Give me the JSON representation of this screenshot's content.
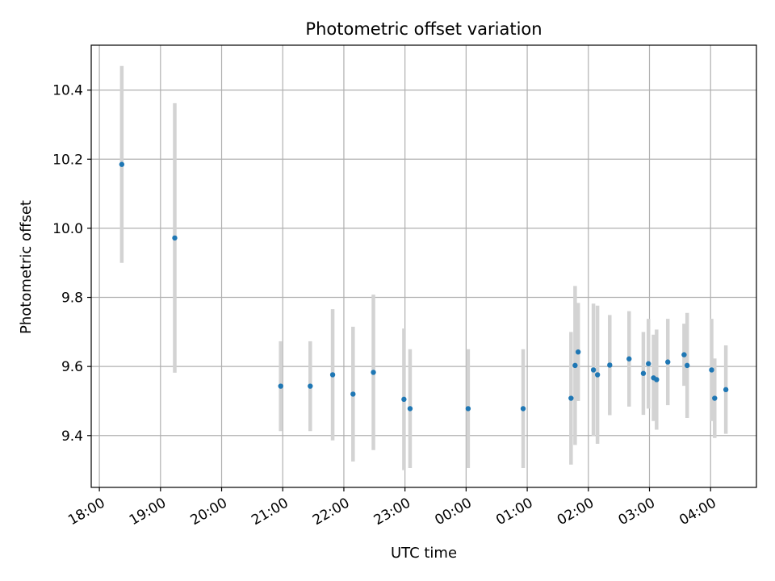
{
  "chart_data": {
    "type": "scatter",
    "title": "Photometric offset variation",
    "xlabel": "UTC time",
    "ylabel": "Photometric offset",
    "x_axis_type": "time",
    "x_axis_start": "18:00",
    "xlim": [
      "17:52",
      "04:45"
    ],
    "ylim": [
      9.25,
      10.53
    ],
    "x_ticks": [
      "18:00",
      "19:00",
      "20:00",
      "21:00",
      "22:00",
      "23:00",
      "00:00",
      "01:00",
      "02:00",
      "03:00",
      "04:00"
    ],
    "y_ticks": [
      9.4,
      9.6,
      9.8,
      10.0,
      10.2,
      10.4
    ],
    "y_tick_labels": [
      "9.4",
      "9.6",
      "9.8",
      "10.0",
      "10.2",
      "10.4"
    ],
    "grid": true,
    "marker_color": "#1f77b4",
    "errorbar_color": "#d3d3d3",
    "points": [
      {
        "t": "18:22",
        "y": 10.185,
        "err": 0.285
      },
      {
        "t": "19:14",
        "y": 9.972,
        "err": 0.39
      },
      {
        "t": "20:58",
        "y": 9.543,
        "err": 0.13
      },
      {
        "t": "21:27",
        "y": 9.543,
        "err": 0.13
      },
      {
        "t": "21:49",
        "y": 9.576,
        "err": 0.19
      },
      {
        "t": "22:09",
        "y": 9.52,
        "err": 0.195
      },
      {
        "t": "22:29",
        "y": 9.583,
        "err": 0.225
      },
      {
        "t": "22:59",
        "y": 9.505,
        "err": 0.205
      },
      {
        "t": "23:05",
        "y": 9.478,
        "err": 0.172
      },
      {
        "t": "00:02",
        "y": 9.478,
        "err": 0.172
      },
      {
        "t": "00:56",
        "y": 9.478,
        "err": 0.172
      },
      {
        "t": "01:43",
        "y": 9.508,
        "err": 0.192
      },
      {
        "t": "01:47",
        "y": 9.603,
        "err": 0.23
      },
      {
        "t": "01:50",
        "y": 9.642,
        "err": 0.142
      },
      {
        "t": "02:05",
        "y": 9.59,
        "err": 0.192
      },
      {
        "t": "02:09",
        "y": 9.576,
        "err": 0.2
      },
      {
        "t": "02:21",
        "y": 9.604,
        "err": 0.145
      },
      {
        "t": "02:40",
        "y": 9.622,
        "err": 0.138
      },
      {
        "t": "02:54",
        "y": 9.58,
        "err": 0.12
      },
      {
        "t": "02:59",
        "y": 9.608,
        "err": 0.13
      },
      {
        "t": "03:04",
        "y": 9.567,
        "err": 0.125
      },
      {
        "t": "03:07",
        "y": 9.562,
        "err": 0.145
      },
      {
        "t": "03:18",
        "y": 9.613,
        "err": 0.125
      },
      {
        "t": "03:34",
        "y": 9.634,
        "err": 0.09
      },
      {
        "t": "03:37",
        "y": 9.603,
        "err": 0.152
      },
      {
        "t": "04:01",
        "y": 9.59,
        "err": 0.148
      },
      {
        "t": "04:04",
        "y": 9.508,
        "err": 0.115
      },
      {
        "t": "04:15",
        "y": 9.533,
        "err": 0.128
      }
    ]
  }
}
